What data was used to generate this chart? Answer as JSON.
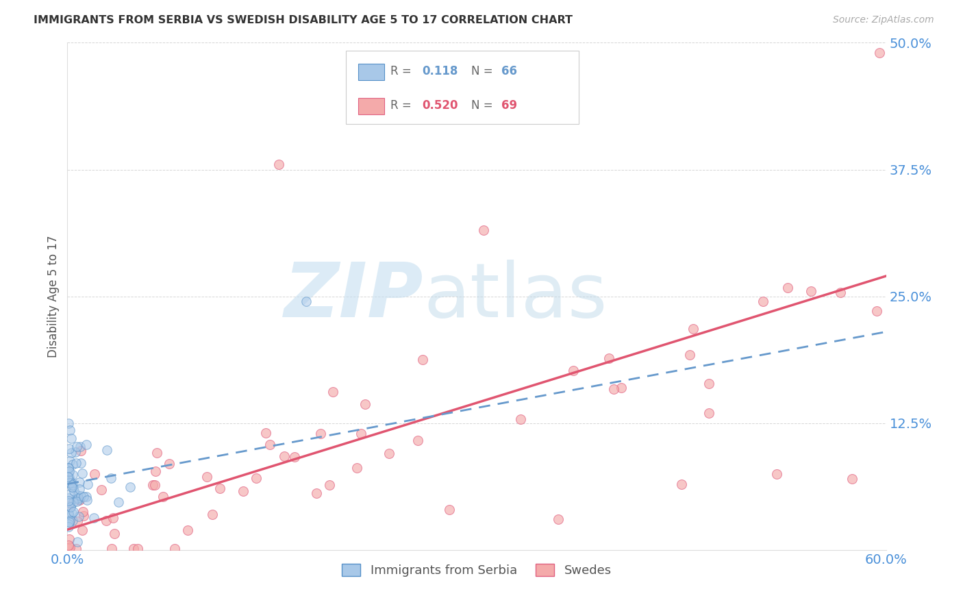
{
  "title": "IMMIGRANTS FROM SERBIA VS SWEDISH DISABILITY AGE 5 TO 17 CORRELATION CHART",
  "source": "Source: ZipAtlas.com",
  "ylabel_label": "Disability Age 5 to 17",
  "legend_series1_label": "Immigrants from Serbia",
  "legend_series2_label": "Swedes",
  "legend_r1_val": "0.118",
  "legend_n1_val": "66",
  "legend_r2_val": "0.520",
  "legend_n2_val": "69",
  "color_blue_fill": "#a8c8e8",
  "color_blue_edge": "#5590c8",
  "color_pink_fill": "#f4aaaa",
  "color_pink_edge": "#e06080",
  "color_trendline_blue": "#6699cc",
  "color_trendline_pink": "#e05570",
  "color_axis_labels": "#4a90d9",
  "color_grid": "#cccccc",
  "xlim": [
    0.0,
    0.6
  ],
  "ylim": [
    0.0,
    0.5
  ],
  "yticks": [
    0.0,
    0.125,
    0.25,
    0.375,
    0.5
  ],
  "ytick_labels": [
    "",
    "12.5%",
    "25.0%",
    "37.5%",
    "50.0%"
  ],
  "xticks": [
    0.0,
    0.6
  ],
  "xtick_labels": [
    "0.0%",
    "60.0%"
  ]
}
